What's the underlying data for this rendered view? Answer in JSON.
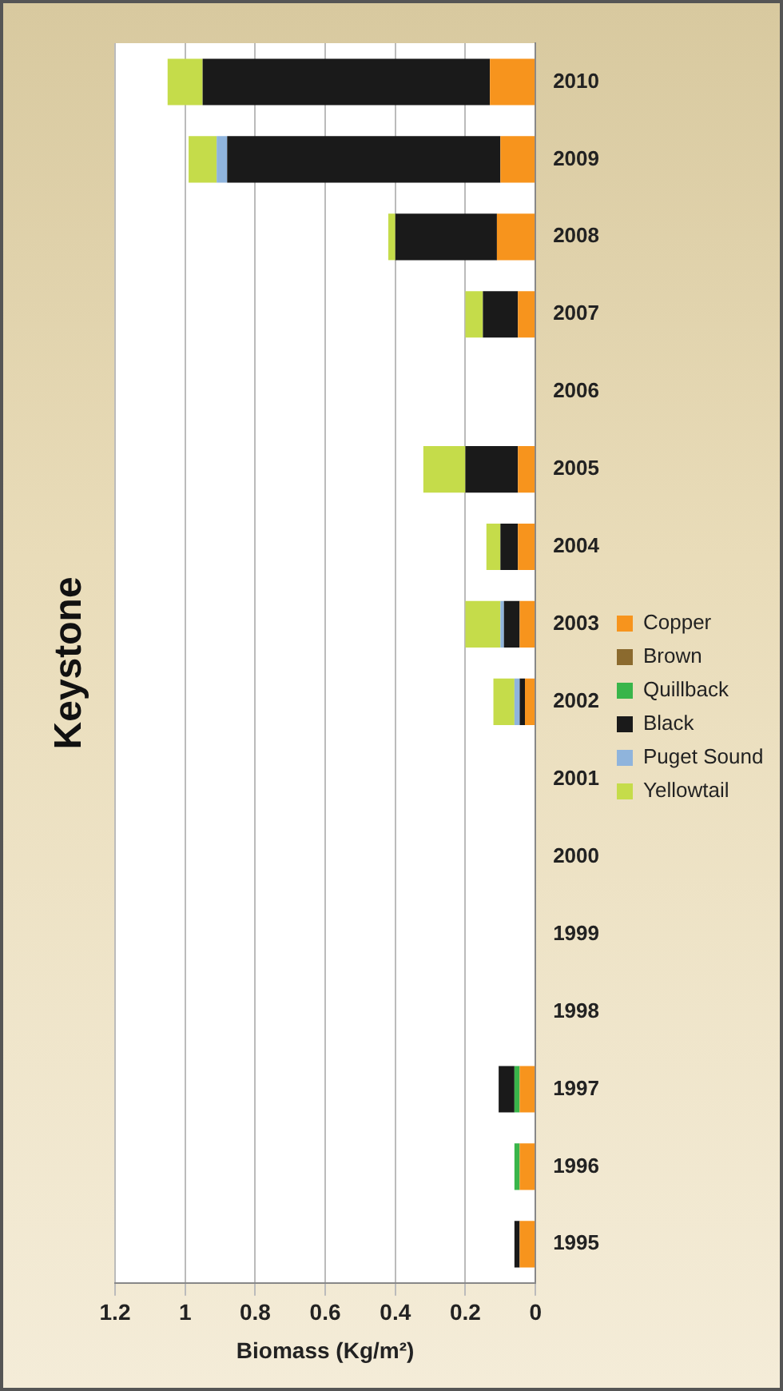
{
  "chart_data": {
    "type": "bar",
    "orientation": "horizontal",
    "title": "Keystone",
    "xlabel": "Biomass (Kg/m²)",
    "categories": [
      "2010",
      "2009",
      "2008",
      "2007",
      "2006",
      "2005",
      "2004",
      "2003",
      "2002",
      "2001",
      "2000",
      "1999",
      "1998",
      "1997",
      "1996",
      "1995"
    ],
    "stacked": true,
    "series": [
      {
        "name": "Copper",
        "color": "#f7941d",
        "values": [
          0.13,
          0.1,
          0.11,
          0.05,
          0,
          0.05,
          0.05,
          0.045,
          0.03,
          0,
          0,
          0,
          0,
          0.045,
          0.045,
          0.045
        ]
      },
      {
        "name": "Brown",
        "color": "#8b6a2e",
        "values": [
          0,
          0,
          0,
          0,
          0,
          0,
          0,
          0,
          0,
          0,
          0,
          0,
          0,
          0,
          0,
          0
        ]
      },
      {
        "name": "Quillback",
        "color": "#39b54a",
        "values": [
          0,
          0,
          0,
          0,
          0,
          0,
          0,
          0,
          0,
          0,
          0,
          0,
          0,
          0.015,
          0.015,
          0
        ]
      },
      {
        "name": "Black",
        "color": "#1a1a1a",
        "values": [
          0.82,
          0.78,
          0.29,
          0.1,
          0,
          0.15,
          0.05,
          0.045,
          0.015,
          0,
          0,
          0,
          0,
          0.045,
          0,
          0.015
        ]
      },
      {
        "name": "Puget Sound",
        "color": "#8fb4dc",
        "values": [
          0,
          0.03,
          0,
          0,
          0,
          0,
          0,
          0.01,
          0.015,
          0,
          0,
          0,
          0,
          0,
          0,
          0
        ]
      },
      {
        "name": "Yellowtail",
        "color": "#c5dc4a",
        "values": [
          0.1,
          0.08,
          0.02,
          0.05,
          0,
          0.12,
          0.04,
          0.1,
          0.06,
          0,
          0,
          0,
          0,
          0,
          0,
          0
        ]
      }
    ],
    "xlim": [
      1.2,
      0
    ],
    "xticks": [
      0,
      0.2,
      0.4,
      0.6,
      0.8,
      1,
      1.2
    ],
    "grid": "x",
    "legend": "right"
  }
}
